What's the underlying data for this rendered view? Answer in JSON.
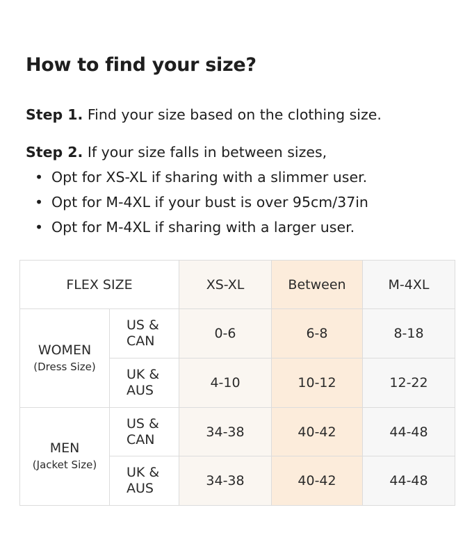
{
  "title": "How to find your size?",
  "step1": {
    "label": "Step 1.",
    "text": " Find your size based on the clothing size."
  },
  "step2": {
    "label": "Step 2.",
    "text": " If your size falls in between sizes,"
  },
  "bullets": [
    "Opt for XS-XL if sharing with a slimmer user.",
    "Opt for M-4XL if your bust is over 95cm/37in",
    "Opt for M-4XL if sharing with a larger user."
  ],
  "table": {
    "corner": "FLEX SIZE",
    "columns": [
      "XS-XL",
      "Between",
      "M-4XL"
    ],
    "column_colors": [
      "#faf6f1",
      "#fcecdb",
      "#f7f7f7"
    ],
    "groups": [
      {
        "name": "WOMEN",
        "sub": "(Dress Size)",
        "rows": [
          {
            "label1": "US &",
            "label2": "CAN",
            "values": [
              "0-6",
              "6-8",
              "8-18"
            ]
          },
          {
            "label1": "UK &",
            "label2": "AUS",
            "values": [
              "4-10",
              "10-12",
              "12-22"
            ]
          }
        ]
      },
      {
        "name": "MEN",
        "sub": "(Jacket Size)",
        "rows": [
          {
            "label1": "US &",
            "label2": "CAN",
            "values": [
              "34-38",
              "40-42",
              "44-48"
            ]
          },
          {
            "label1": "UK &",
            "label2": "AUS",
            "values": [
              "34-38",
              "40-42",
              "44-48"
            ]
          }
        ]
      }
    ]
  }
}
